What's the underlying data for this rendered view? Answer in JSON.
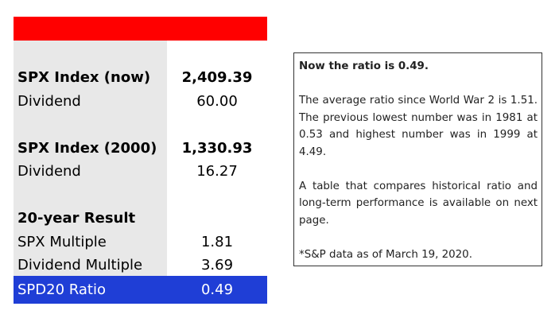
{
  "table": {
    "header_color": "#ff0000",
    "result_color": "#1f3ed6",
    "rows": [
      {
        "label": "SPX Index (now)",
        "value": "2,409.39",
        "bold": true
      },
      {
        "label": "Dividend",
        "value": "60.00",
        "bold": false
      },
      {
        "label": "SPX Index (2000)",
        "value": "1,330.93",
        "bold": true
      },
      {
        "label": "Dividend",
        "value": "16.27",
        "bold": false
      },
      {
        "label": "20-year Result",
        "value": "",
        "bold": true
      },
      {
        "label": "SPX Multiple",
        "value": "1.81",
        "bold": false
      },
      {
        "label": "Dividend Multiple",
        "value": "3.69",
        "bold": false
      }
    ],
    "result": {
      "label": "SPD20 Ratio",
      "value": "0.49"
    }
  },
  "note": {
    "title": "Now the ratio is 0.49.",
    "paragraph1": "The average ratio since World War 2 is 1.51. The previous lowest number was in 1981 at 0.53 and highest number was in 1999 at 4.49.",
    "paragraph2": "A table that compares historical ratio and long-term performance is available on next page.",
    "footnote": "*S&P data as of March 19, 2020."
  }
}
